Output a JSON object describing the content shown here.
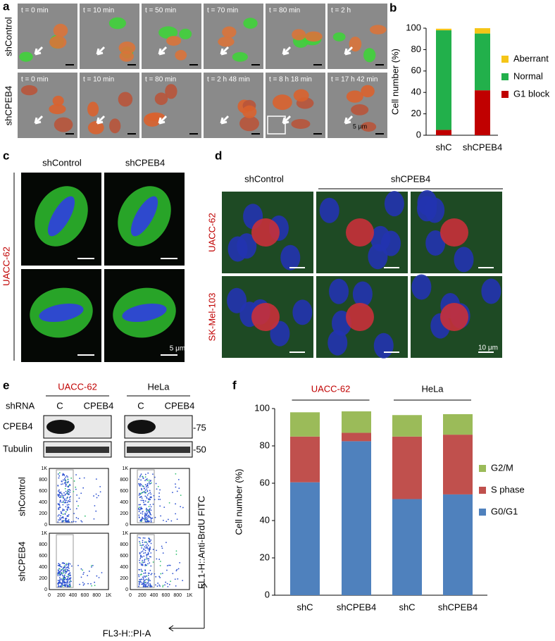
{
  "chart_data": [
    {
      "type": "stacked_bar",
      "panel_label": "b",
      "ylabel": "Cell number (%)",
      "categories": [
        "shC",
        "shCPEB4"
      ],
      "series": [
        {
          "name": "G1 block",
          "color": "#c00000",
          "values": [
            5,
            42
          ]
        },
        {
          "name": "Normal",
          "color": "#22b04b",
          "values": [
            93,
            53
          ]
        },
        {
          "name": "Aberrant",
          "color": "#f5c518",
          "values": [
            1.5,
            5
          ]
        }
      ],
      "ylim": [
        0,
        100
      ],
      "yticks": [
        0,
        20,
        40,
        60,
        80,
        100
      ],
      "grid": false,
      "legend": "right"
    },
    {
      "type": "stacked_bar",
      "panel_label": "f",
      "ylabel": "Cell number (%)",
      "categories": [
        "shC",
        "shCPEB4",
        "shC",
        "shCPEB4"
      ],
      "groups": [
        {
          "label": "UACC-62",
          "color": "#c00000"
        },
        {
          "label": "HeLa",
          "color": "#000000"
        }
      ],
      "series": [
        {
          "name": "G0/G1",
          "color": "#4f81bd",
          "values": [
            60.5,
            82.5,
            51.5,
            54
          ]
        },
        {
          "name": "S phase",
          "color": "#c0504d",
          "values": [
            24.5,
            4.5,
            33.5,
            32
          ]
        },
        {
          "name": "G2/M",
          "color": "#9bbb59",
          "values": [
            13,
            11.5,
            11.5,
            11
          ]
        }
      ],
      "ylim": [
        0,
        100
      ],
      "yticks": [
        0,
        20,
        40,
        60,
        80,
        100
      ],
      "grid": false,
      "legend": "right"
    }
  ],
  "panel_a": {
    "label": "a",
    "rows": [
      "shControl",
      "shCPEB4"
    ],
    "times": [
      [
        "t = 0 min",
        "t = 10 min",
        "t = 50 min",
        "t = 70 min",
        "t = 80 min",
        "t = 2 h"
      ],
      [
        "t = 0 min",
        "t = 10 min",
        "t = 80 min",
        "t = 2 h 48 min",
        "t = 8 h 18 min",
        "t = 17 h 42 min"
      ]
    ],
    "scale": "5 μm"
  },
  "panel_c": {
    "label": "c",
    "columns": [
      "shControl",
      "shCPEB4"
    ],
    "row_label": "UACC-62",
    "scale": "5 μm"
  },
  "panel_d": {
    "label": "d",
    "columns": [
      "shControl",
      "shCPEB4"
    ],
    "rows": [
      "UACC-62",
      "SK-Mel-103"
    ],
    "scale": "10 μm"
  },
  "panel_e": {
    "label": "e",
    "cell_lines": [
      "UACC-62",
      "HeLa"
    ],
    "shrna_label": "shRNA",
    "lanes": [
      "C",
      "CPEB4"
    ],
    "blots": [
      "CPEB4",
      "Tubulin"
    ],
    "markers": [
      "-75",
      "-50"
    ],
    "rows": [
      "shControl",
      "shCPEB4"
    ],
    "flow_yticks": [
      "1K",
      "800",
      "600",
      "400",
      "200",
      "0"
    ],
    "flow_xticks": [
      "0",
      "200",
      "400",
      "600",
      "800",
      "1K"
    ],
    "y_axis": "FL1-H::Anti-BrdU FITC",
    "x_axis": "FL3-H::PI-A"
  }
}
